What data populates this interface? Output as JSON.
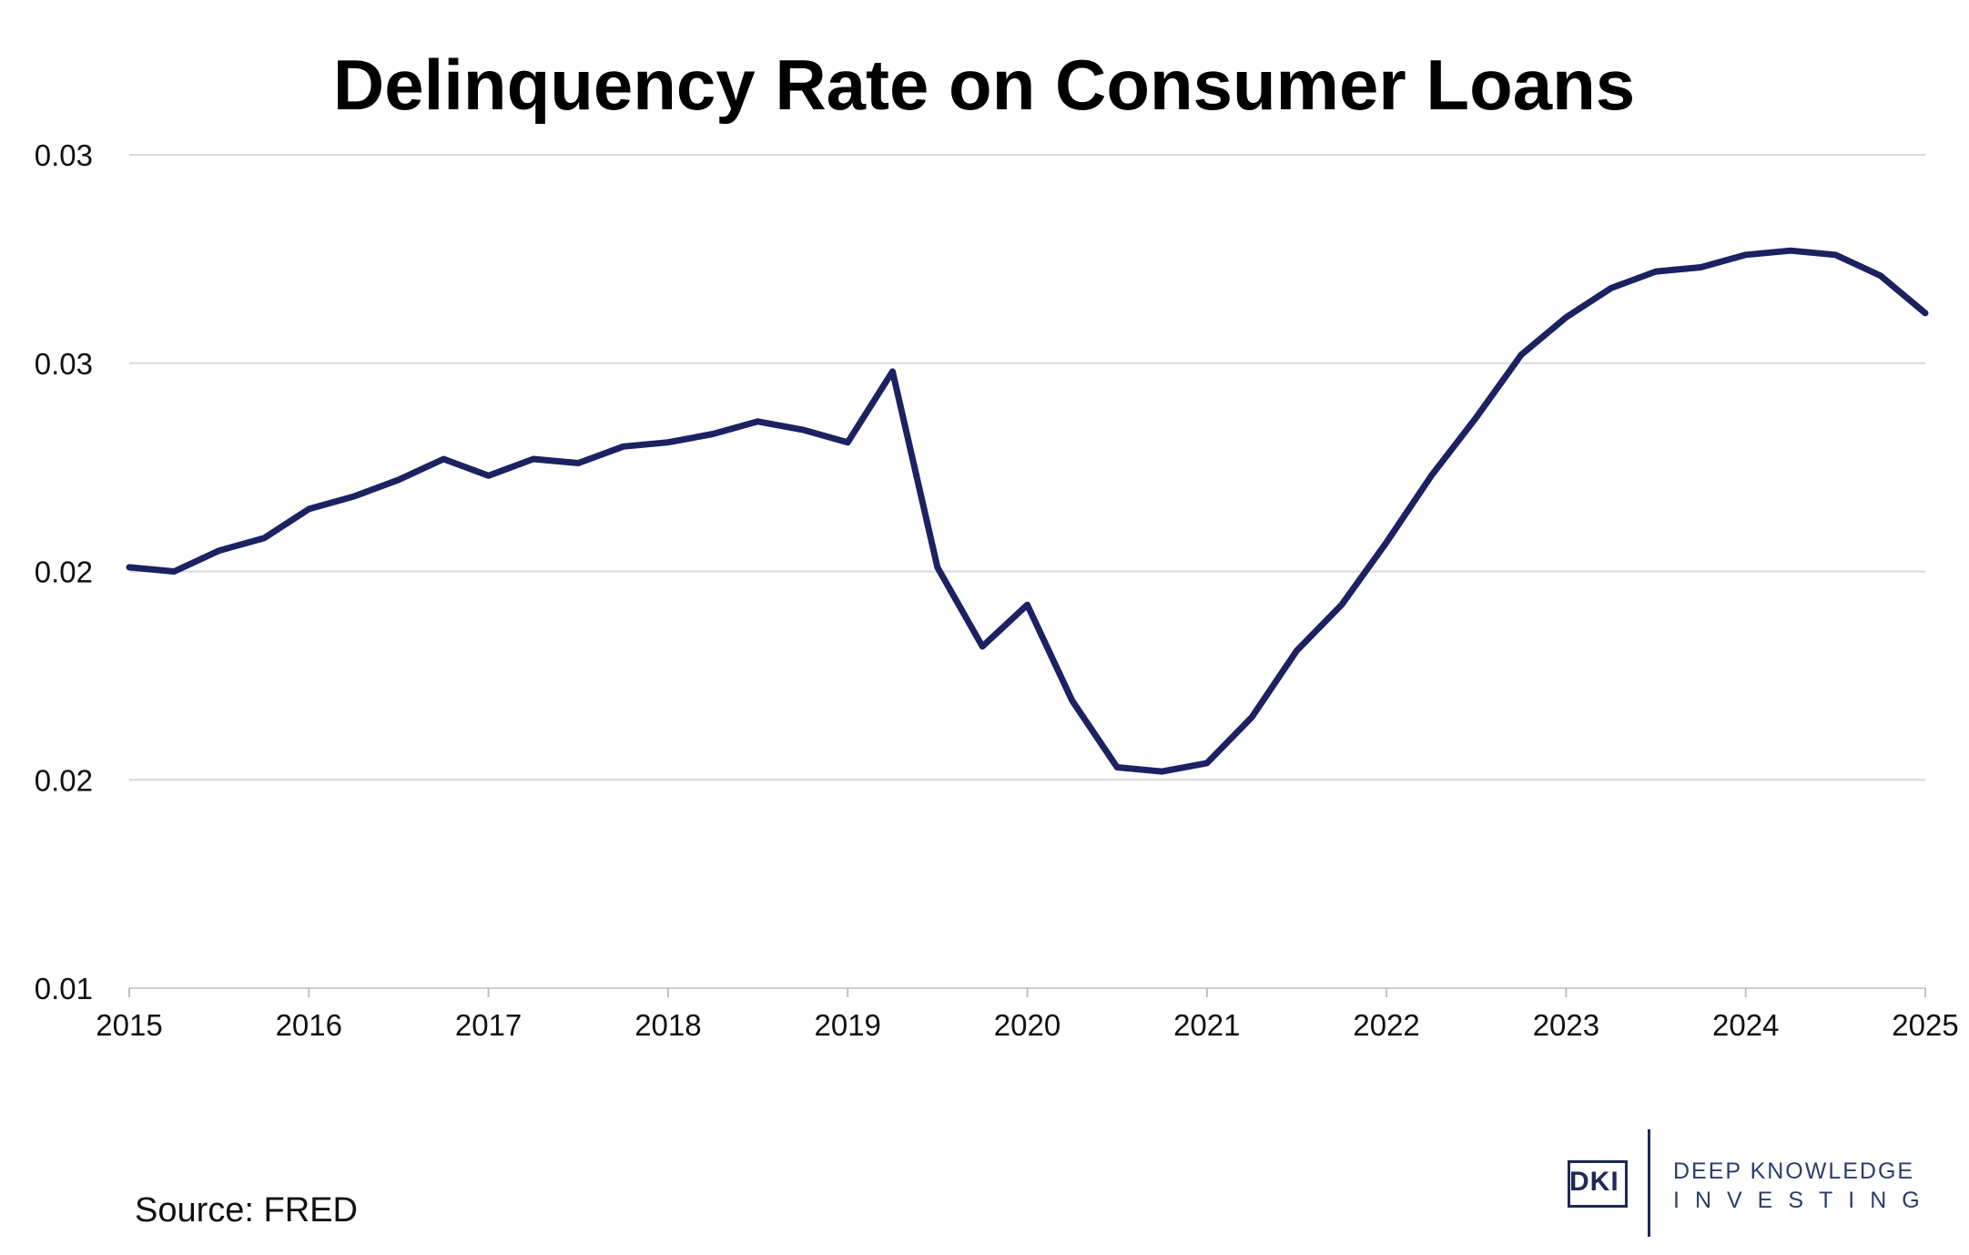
{
  "chart_data": {
    "type": "line",
    "title": "Delinquency Rate on Consumer Loans",
    "xlabel": "",
    "ylabel": "",
    "x_ticks": [
      "2015",
      "2016",
      "2017",
      "2018",
      "2019",
      "2020",
      "2021",
      "2022",
      "2023",
      "2024",
      "2025"
    ],
    "y_ticks": [
      "0.01",
      "0.02",
      "0.02",
      "0.03",
      "0.03"
    ],
    "y_tick_values": [
      0.01,
      0.015,
      0.02,
      0.025,
      0.03
    ],
    "xlim": [
      2015.0,
      2025.0
    ],
    "ylim": [
      0.01,
      0.03
    ],
    "grid": "horizontal",
    "legend": "none",
    "line_color": "#1b2161",
    "grid_color": "#d9d9d9",
    "series": [
      {
        "x": [
          2015.0,
          2015.25,
          2015.5,
          2015.75,
          2016.0,
          2016.25,
          2016.5,
          2016.75,
          2017.0,
          2017.25,
          2017.5,
          2017.75,
          2018.0,
          2018.25,
          2018.5,
          2018.75,
          2019.0,
          2019.25,
          2019.5,
          2019.75,
          2020.0,
          2020.25,
          2020.5,
          2020.75,
          2021.0,
          2021.25,
          2021.5,
          2021.75,
          2022.0,
          2022.25,
          2022.5,
          2022.75,
          2023.0,
          2023.25,
          2023.5,
          2023.75,
          2024.0,
          2024.25,
          2024.5,
          2024.75,
          2025.0
        ],
        "values": [
          0.0201,
          0.02,
          0.0205,
          0.0208,
          0.0215,
          0.0218,
          0.0222,
          0.0227,
          0.0223,
          0.0227,
          0.0226,
          0.023,
          0.0231,
          0.0233,
          0.0236,
          0.0234,
          0.0231,
          0.0248,
          0.0201,
          0.0182,
          0.0192,
          0.0169,
          0.0153,
          0.0152,
          0.0154,
          0.0165,
          0.0181,
          0.0192,
          0.0207,
          0.0223,
          0.0237,
          0.0252,
          0.0261,
          0.0268,
          0.0272,
          0.0273,
          0.0276,
          0.0277,
          0.0276,
          0.0271,
          0.0262
        ]
      }
    ]
  },
  "source": "Source: FRED",
  "logo": {
    "abbr": "DKI",
    "line1": "DEEP KNOWLEDGE",
    "line2": "INVESTING"
  }
}
